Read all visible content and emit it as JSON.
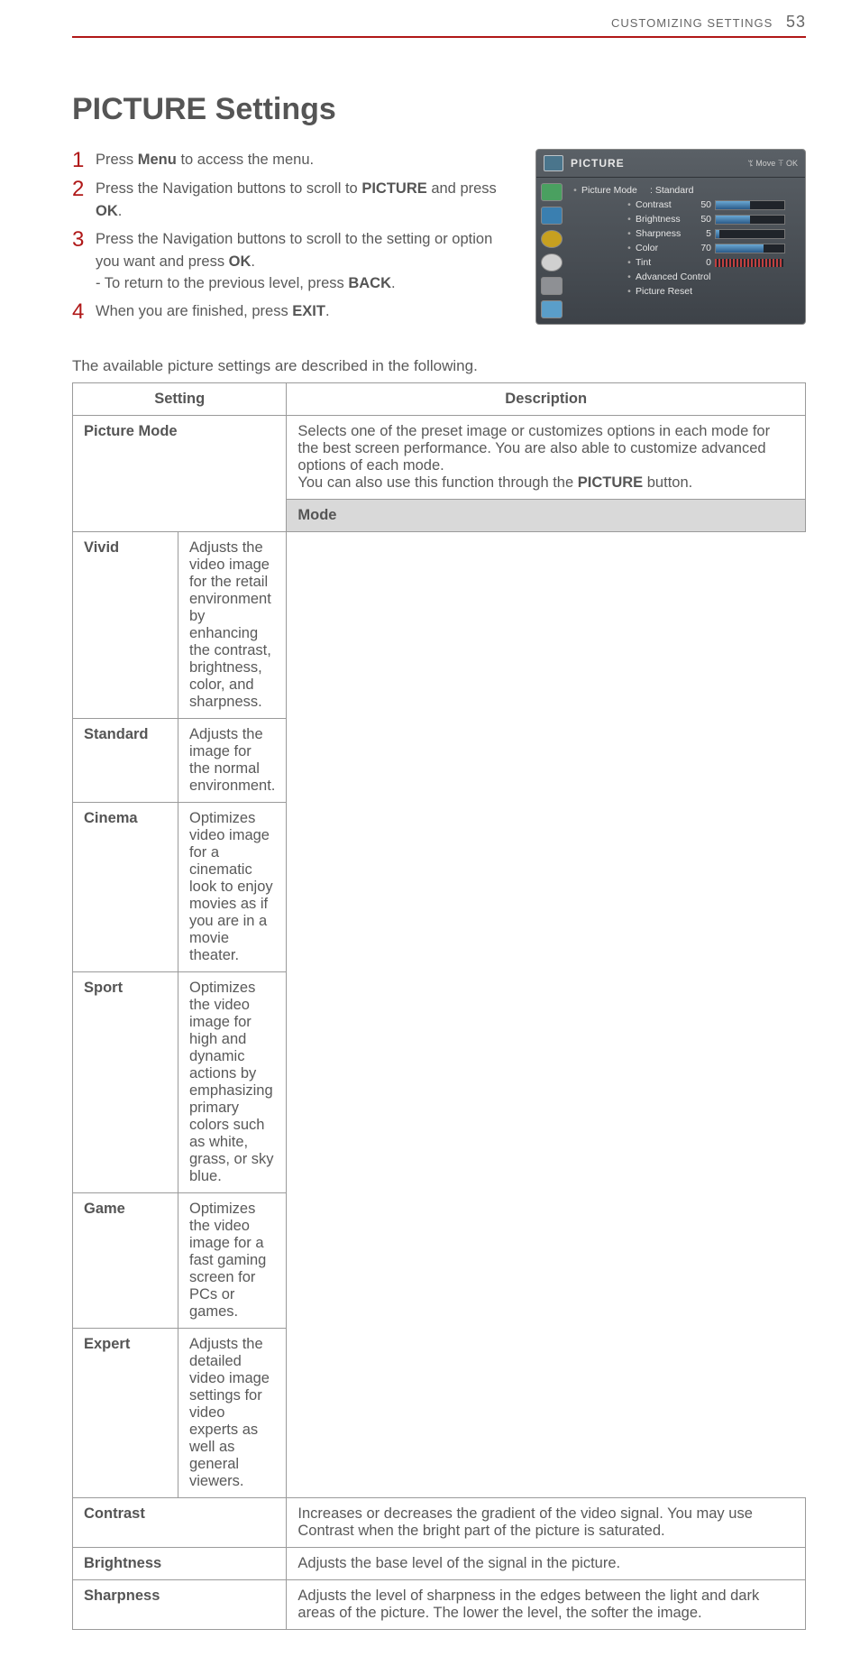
{
  "header": {
    "section": "CUSTOMIZING SETTINGS",
    "page": "53"
  },
  "title": "PICTURE Settings",
  "steps": [
    {
      "n": "1",
      "pre": "Press ",
      "bold": "Menu",
      "post": " to access the menu."
    },
    {
      "n": "2",
      "pre": "Press the Navigation buttons to scroll to ",
      "bold": "PICTURE",
      "mid": " and press ",
      "bold2": "OK",
      "post": "."
    },
    {
      "n": "3",
      "pre": "Press the Navigation buttons to scroll to the setting or option you want and press ",
      "bold": "OK",
      "post": ".",
      "sub": "- To return to the previous level, press ",
      "subbold": "BACK",
      "subpost": "."
    },
    {
      "n": "4",
      "pre": "When you are finished, press ",
      "bold": "EXIT",
      "post": "."
    }
  ],
  "osd": {
    "title": "PICTURE",
    "right": "ꔂ Move   ꔉ OK",
    "mode_row": {
      "label": "Picture Mode",
      "value": ": Standard"
    },
    "sliders": [
      {
        "label": "Contrast",
        "value": 50,
        "max": 100
      },
      {
        "label": "Brightness",
        "value": 50,
        "max": 100
      },
      {
        "label": "Sharpness",
        "value": 5,
        "max": 100
      },
      {
        "label": "Color",
        "value": 70,
        "max": 100
      }
    ],
    "tint": {
      "label": "Tint",
      "value": 0
    },
    "extra": [
      "Advanced Control",
      "Picture Reset"
    ],
    "colors": {
      "panel_top": "#5a6066",
      "panel_bot": "#3d4248",
      "bar_fill": "#3f7fb4"
    }
  },
  "intro": "The available picture settings are described in the following.",
  "table": {
    "head": {
      "c1": "Setting",
      "c2": "Description"
    },
    "picture_mode": {
      "name": "Picture Mode",
      "desc_parts": {
        "pre": "Selects one of the preset image or customizes options in each mode for the best screen performance. You are also able to customize advanced options of each mode.\nYou can also use this function through the ",
        "bold": "PICTURE",
        "post": " button."
      },
      "mode_header": "Mode",
      "modes": [
        {
          "name": "Vivid",
          "desc": "Adjusts the video image for the retail environment by enhancing the contrast, brightness, color, and sharpness."
        },
        {
          "name": "Standard",
          "desc": "Adjusts the image for the normal environment."
        },
        {
          "name": "Cinema",
          "desc": "Optimizes video image for a cinematic look to enjoy movies as if you are in a movie theater."
        },
        {
          "name": "Sport",
          "desc": "Optimizes the video image for high and dynamic actions by emphasizing primary colors such as white, grass, or sky blue."
        },
        {
          "name": "Game",
          "desc": "Optimizes the video image for a fast gaming screen for PCs or games."
        },
        {
          "name": "Expert",
          "desc": "Adjusts the detailed video image settings for video experts as well as general viewers."
        }
      ]
    },
    "rows": [
      {
        "name": "Contrast",
        "desc": "Increases or decreases the gradient of the video signal. You may use Contrast when the bright part of the picture is saturated."
      },
      {
        "name": "Brightness",
        "desc": "Adjusts the base level of the signal in the picture."
      },
      {
        "name": "Sharpness",
        "desc": "Adjusts the level of sharpness in the edges between the light and dark areas of the picture. The lower the level, the softer the image."
      }
    ]
  }
}
